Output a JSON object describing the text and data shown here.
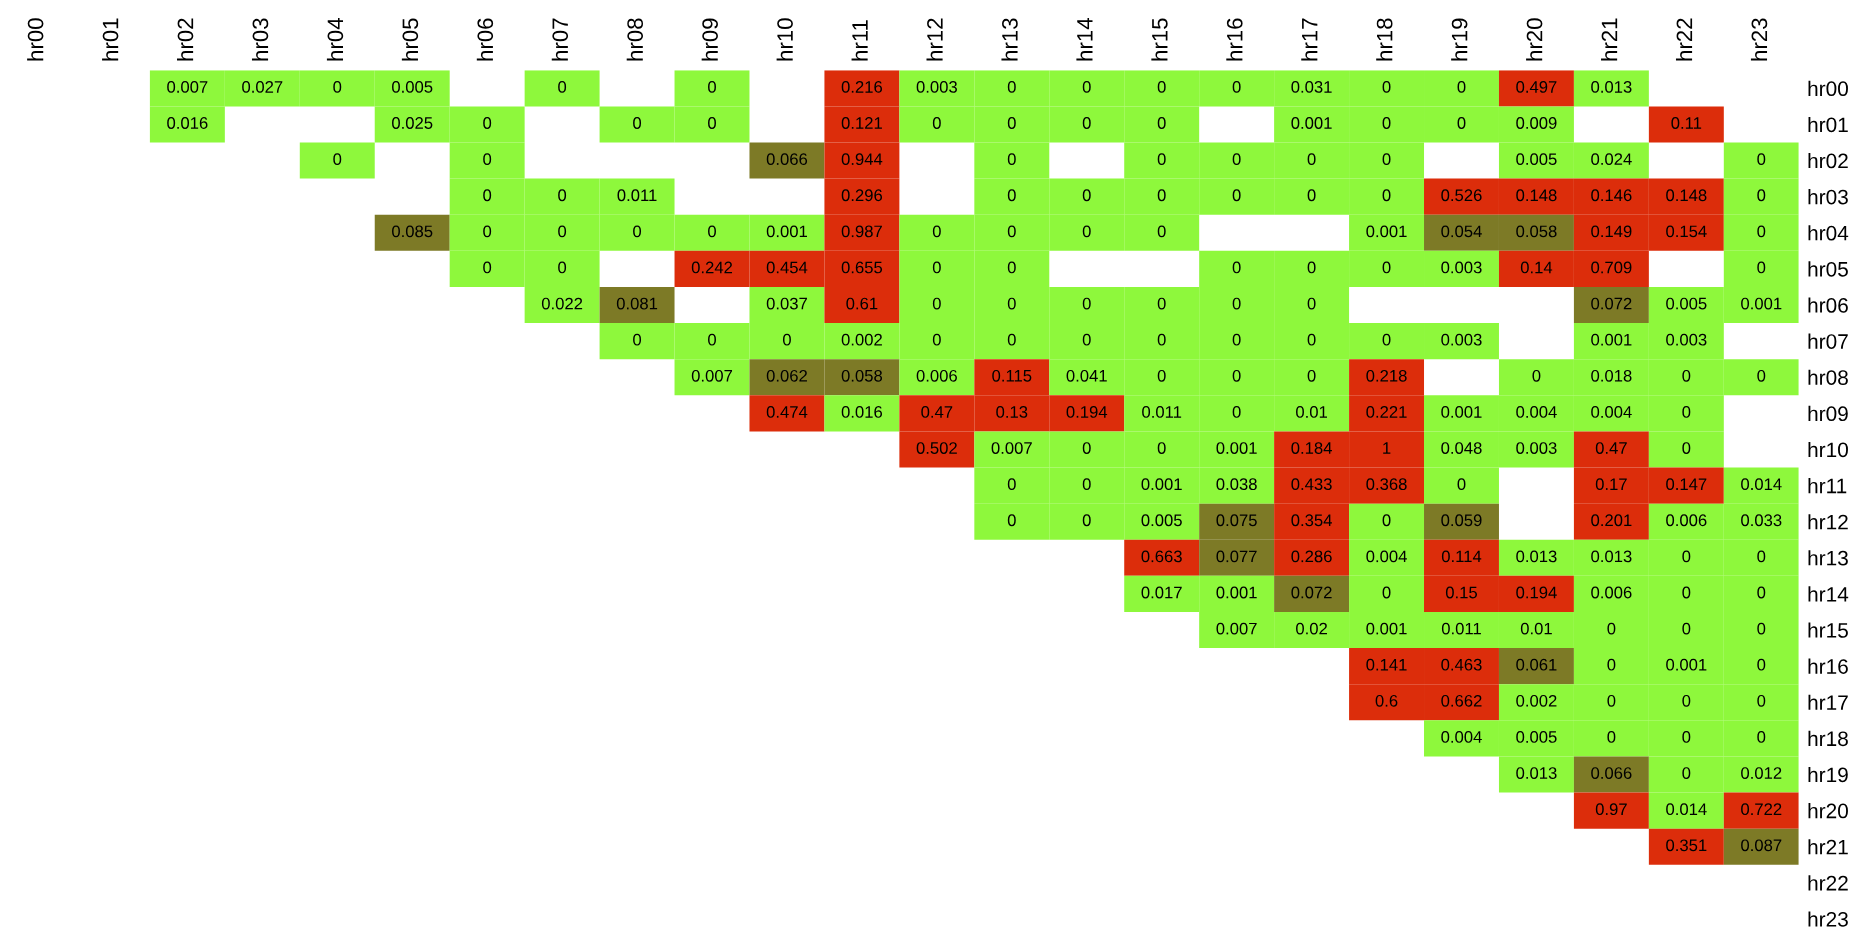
{
  "chart_data": {
    "type": "heatmap",
    "categories": [
      "hr00",
      "hr01",
      "hr02",
      "hr03",
      "hr04",
      "hr05",
      "hr06",
      "hr07",
      "hr08",
      "hr09",
      "hr10",
      "hr11",
      "hr12",
      "hr13",
      "hr14",
      "hr15",
      "hr16",
      "hr17",
      "hr18",
      "hr19",
      "hr20",
      "hr21",
      "hr22",
      "hr23"
    ],
    "y_categories": [
      "hr00",
      "hr01",
      "hr02",
      "hr03",
      "hr04",
      "hr05",
      "hr06",
      "hr07",
      "hr08",
      "hr09",
      "hr10",
      "hr11",
      "hr12",
      "hr13",
      "hr14",
      "hr15",
      "hr16",
      "hr17",
      "hr18",
      "hr19",
      "hr20",
      "hr21",
      "hr22",
      "hr23"
    ],
    "colors": [
      [
        null,
        null,
        "#8ef83c",
        "#8ef83c",
        "#8ef83c",
        "#8ef83c",
        null,
        "#8ef83c",
        null,
        "#8ef83c",
        null,
        "#dc2d0b",
        "#8ef83c",
        "#8ef83c",
        "#8ef83c",
        "#8ef83c",
        "#8ef83c",
        "#8ef83c",
        "#8ef83c",
        "#8ef83c",
        "#dc2d0b",
        "#8ef83c",
        null,
        null
      ],
      [
        null,
        null,
        "#8ef83c",
        null,
        null,
        "#8ef83c",
        "#8ef83c",
        null,
        "#8ef83c",
        "#8ef83c",
        null,
        "#dc2d0b",
        "#8ef83c",
        "#8ef83c",
        "#8ef83c",
        "#8ef83c",
        null,
        "#8ef83c",
        "#8ef83c",
        "#8ef83c",
        "#8ef83c",
        null,
        "#dc2d0b",
        null
      ],
      [
        null,
        null,
        null,
        null,
        "#8ef83c",
        null,
        "#8ef83c",
        null,
        null,
        null,
        "#7d7a26",
        "#dc2d0b",
        null,
        "#8ef83c",
        null,
        "#8ef83c",
        "#8ef83c",
        "#8ef83c",
        "#8ef83c",
        null,
        "#8ef83c",
        "#8ef83c",
        null,
        "#8ef83c"
      ],
      [
        null,
        null,
        null,
        null,
        null,
        null,
        "#8ef83c",
        "#8ef83c",
        "#8ef83c",
        null,
        null,
        "#dc2d0b",
        null,
        "#8ef83c",
        "#8ef83c",
        "#8ef83c",
        "#8ef83c",
        "#8ef83c",
        "#8ef83c",
        "#dc2d0b",
        "#dc2d0b",
        "#dc2d0b",
        "#dc2d0b",
        "#8ef83c"
      ],
      [
        null,
        null,
        null,
        null,
        null,
        "#7d7a26",
        "#8ef83c",
        "#8ef83c",
        "#8ef83c",
        "#8ef83c",
        "#8ef83c",
        "#dc2d0b",
        "#8ef83c",
        "#8ef83c",
        "#8ef83c",
        "#8ef83c",
        null,
        null,
        "#8ef83c",
        "#7d7a26",
        "#7d7a26",
        "#dc2d0b",
        "#dc2d0b",
        "#8ef83c"
      ],
      [
        null,
        null,
        null,
        null,
        null,
        null,
        "#8ef83c",
        "#8ef83c",
        null,
        "#dc2d0b",
        "#dc2d0b",
        "#dc2d0b",
        "#8ef83c",
        "#8ef83c",
        null,
        null,
        "#8ef83c",
        "#8ef83c",
        "#8ef83c",
        "#8ef83c",
        "#dc2d0b",
        "#dc2d0b",
        null,
        "#8ef83c"
      ],
      [
        null,
        null,
        null,
        null,
        null,
        null,
        null,
        "#8ef83c",
        "#7d7a26",
        null,
        "#8ef83c",
        "#dc2d0b",
        "#8ef83c",
        "#8ef83c",
        "#8ef83c",
        "#8ef83c",
        "#8ef83c",
        "#8ef83c",
        null,
        null,
        null,
        "#7d7a26",
        "#8ef83c",
        "#8ef83c"
      ],
      [
        null,
        null,
        null,
        null,
        null,
        null,
        null,
        null,
        "#8ef83c",
        "#8ef83c",
        "#8ef83c",
        "#8ef83c",
        "#8ef83c",
        "#8ef83c",
        "#8ef83c",
        "#8ef83c",
        "#8ef83c",
        "#8ef83c",
        "#8ef83c",
        "#8ef83c",
        null,
        "#8ef83c",
        "#8ef83c",
        null
      ],
      [
        null,
        null,
        null,
        null,
        null,
        null,
        null,
        null,
        null,
        "#8ef83c",
        "#7d7a26",
        "#7d7a26",
        "#8ef83c",
        "#dc2d0b",
        "#8ef83c",
        "#8ef83c",
        "#8ef83c",
        "#8ef83c",
        "#dc2d0b",
        null,
        "#8ef83c",
        "#8ef83c",
        "#8ef83c",
        "#8ef83c"
      ],
      [
        null,
        null,
        null,
        null,
        null,
        null,
        null,
        null,
        null,
        null,
        "#dc2d0b",
        "#8ef83c",
        "#dc2d0b",
        "#dc2d0b",
        "#dc2d0b",
        "#8ef83c",
        "#8ef83c",
        "#8ef83c",
        "#dc2d0b",
        "#8ef83c",
        "#8ef83c",
        "#8ef83c",
        "#8ef83c",
        null
      ],
      [
        null,
        null,
        null,
        null,
        null,
        null,
        null,
        null,
        null,
        null,
        null,
        null,
        "#dc2d0b",
        "#8ef83c",
        "#8ef83c",
        "#8ef83c",
        "#8ef83c",
        "#dc2d0b",
        "#dc2d0b",
        "#8ef83c",
        "#8ef83c",
        "#dc2d0b",
        "#8ef83c",
        null
      ],
      [
        null,
        null,
        null,
        null,
        null,
        null,
        null,
        null,
        null,
        null,
        null,
        null,
        null,
        "#8ef83c",
        "#8ef83c",
        "#8ef83c",
        "#8ef83c",
        "#dc2d0b",
        "#dc2d0b",
        "#8ef83c",
        null,
        "#dc2d0b",
        "#dc2d0b",
        "#8ef83c"
      ],
      [
        null,
        null,
        null,
        null,
        null,
        null,
        null,
        null,
        null,
        null,
        null,
        null,
        null,
        "#8ef83c",
        "#8ef83c",
        "#8ef83c",
        "#7d7a26",
        "#dc2d0b",
        "#8ef83c",
        "#7d7a26",
        null,
        "#dc2d0b",
        "#8ef83c",
        "#8ef83c"
      ],
      [
        null,
        null,
        null,
        null,
        null,
        null,
        null,
        null,
        null,
        null,
        null,
        null,
        null,
        null,
        null,
        "#dc2d0b",
        "#7d7a26",
        "#dc2d0b",
        "#8ef83c",
        "#dc2d0b",
        "#8ef83c",
        "#8ef83c",
        "#8ef83c",
        "#8ef83c"
      ],
      [
        null,
        null,
        null,
        null,
        null,
        null,
        null,
        null,
        null,
        null,
        null,
        null,
        null,
        null,
        null,
        "#8ef83c",
        "#8ef83c",
        "#7d7a26",
        "#8ef83c",
        "#dc2d0b",
        "#dc2d0b",
        "#8ef83c",
        "#8ef83c",
        "#8ef83c"
      ],
      [
        null,
        null,
        null,
        null,
        null,
        null,
        null,
        null,
        null,
        null,
        null,
        null,
        null,
        null,
        null,
        null,
        "#8ef83c",
        "#8ef83c",
        "#8ef83c",
        "#8ef83c",
        "#8ef83c",
        "#8ef83c",
        "#8ef83c",
        "#8ef83c"
      ],
      [
        null,
        null,
        null,
        null,
        null,
        null,
        null,
        null,
        null,
        null,
        null,
        null,
        null,
        null,
        null,
        null,
        null,
        null,
        "#dc2d0b",
        "#dc2d0b",
        "#7d7a26",
        "#8ef83c",
        "#8ef83c",
        "#8ef83c"
      ],
      [
        null,
        null,
        null,
        null,
        null,
        null,
        null,
        null,
        null,
        null,
        null,
        null,
        null,
        null,
        null,
        null,
        null,
        null,
        "#dc2d0b",
        "#dc2d0b",
        "#8ef83c",
        "#8ef83c",
        "#8ef83c",
        "#8ef83c"
      ],
      [
        null,
        null,
        null,
        null,
        null,
        null,
        null,
        null,
        null,
        null,
        null,
        null,
        null,
        null,
        null,
        null,
        null,
        null,
        null,
        "#8ef83c",
        "#8ef83c",
        "#8ef83c",
        "#8ef83c",
        "#8ef83c"
      ],
      [
        null,
        null,
        null,
        null,
        null,
        null,
        null,
        null,
        null,
        null,
        null,
        null,
        null,
        null,
        null,
        null,
        null,
        null,
        null,
        null,
        "#8ef83c",
        "#7d7a26",
        "#8ef83c",
        "#8ef83c"
      ],
      [
        null,
        null,
        null,
        null,
        null,
        null,
        null,
        null,
        null,
        null,
        null,
        null,
        null,
        null,
        null,
        null,
        null,
        null,
        null,
        null,
        null,
        "#dc2d0b",
        "#8ef83c",
        "#dc2d0b"
      ],
      [
        null,
        null,
        null,
        null,
        null,
        null,
        null,
        null,
        null,
        null,
        null,
        null,
        null,
        null,
        null,
        null,
        null,
        null,
        null,
        null,
        null,
        null,
        "#dc2d0b",
        "#7d7a26"
      ],
      [
        null,
        null,
        null,
        null,
        null,
        null,
        null,
        null,
        null,
        null,
        null,
        null,
        null,
        null,
        null,
        null,
        null,
        null,
        null,
        null,
        null,
        null,
        null,
        null
      ],
      [
        null,
        null,
        null,
        null,
        null,
        null,
        null,
        null,
        null,
        null,
        null,
        null,
        null,
        null,
        null,
        null,
        null,
        null,
        null,
        null,
        null,
        null,
        null,
        null
      ]
    ],
    "data_labels": true,
    "grid": false,
    "cells": [
      [
        null,
        null,
        0.007,
        0.027,
        0,
        0.005,
        null,
        0,
        null,
        0,
        null,
        0.216,
        0.003,
        0,
        0,
        0,
        0,
        0.031,
        0,
        0,
        0.497,
        0.013,
        null,
        null
      ],
      [
        null,
        null,
        0.016,
        null,
        null,
        0.025,
        0,
        null,
        0,
        0,
        null,
        0.121,
        0,
        0,
        0,
        0,
        null,
        0.001,
        0,
        0,
        0.009,
        null,
        0.11,
        null
      ],
      [
        null,
        null,
        null,
        null,
        0,
        null,
        0,
        null,
        null,
        null,
        0.066,
        0.944,
        null,
        0,
        null,
        0,
        0,
        0,
        0,
        null,
        0.005,
        0.024,
        null,
        0
      ],
      [
        null,
        null,
        null,
        null,
        null,
        null,
        0,
        0,
        0.011,
        null,
        null,
        0.296,
        null,
        0,
        0,
        0,
        0,
        0,
        0,
        0.526,
        0.148,
        0.146,
        0.148,
        0
      ],
      [
        null,
        null,
        null,
        null,
        null,
        0.085,
        0,
        0,
        0,
        0,
        0.001,
        0.987,
        0,
        0,
        0,
        0,
        null,
        null,
        0.001,
        0.054,
        0.058,
        0.149,
        0.154,
        0
      ],
      [
        null,
        null,
        null,
        null,
        null,
        null,
        0,
        0,
        null,
        0.242,
        0.454,
        0.655,
        0,
        0,
        null,
        null,
        0,
        0,
        0,
        0.003,
        0.14,
        0.709,
        null,
        0
      ],
      [
        null,
        null,
        null,
        null,
        null,
        null,
        null,
        0.022,
        0.081,
        null,
        0.037,
        0.61,
        0,
        0,
        0,
        0,
        0,
        0,
        null,
        null,
        null,
        0.072,
        0.005,
        0.001
      ],
      [
        null,
        null,
        null,
        null,
        null,
        null,
        null,
        null,
        0,
        0,
        0,
        0.002,
        0,
        0,
        0,
        0,
        0,
        0,
        0,
        0.003,
        null,
        0.001,
        0.003,
        null
      ],
      [
        null,
        null,
        null,
        null,
        null,
        null,
        null,
        null,
        null,
        0.007,
        0.062,
        0.058,
        0.006,
        0.115,
        0.041,
        0,
        0,
        0,
        0.218,
        null,
        0,
        0.018,
        0,
        0
      ],
      [
        null,
        null,
        null,
        null,
        null,
        null,
        null,
        null,
        null,
        null,
        0.474,
        0.016,
        0.47,
        0.13,
        0.194,
        0.011,
        0,
        0.01,
        0.221,
        0.001,
        0.004,
        0.004,
        0,
        null
      ],
      [
        null,
        null,
        null,
        null,
        null,
        null,
        null,
        null,
        null,
        null,
        null,
        null,
        0.502,
        0.007,
        0,
        0,
        0.001,
        0.184,
        1,
        0.048,
        0.003,
        0.47,
        0,
        null
      ],
      [
        null,
        null,
        null,
        null,
        null,
        null,
        null,
        null,
        null,
        null,
        null,
        null,
        null,
        0,
        0,
        0.001,
        0.038,
        0.433,
        0.368,
        0,
        null,
        0.17,
        0.147,
        0.014
      ],
      [
        null,
        null,
        null,
        null,
        null,
        null,
        null,
        null,
        null,
        null,
        null,
        null,
        null,
        0,
        0,
        0.005,
        0.075,
        0.354,
        0,
        0.059,
        null,
        0.201,
        0.006,
        0.033
      ],
      [
        null,
        null,
        null,
        null,
        null,
        null,
        null,
        null,
        null,
        null,
        null,
        null,
        null,
        null,
        null,
        0.663,
        0.077,
        0.286,
        0.004,
        0.114,
        0.013,
        0.013,
        0,
        0
      ],
      [
        null,
        null,
        null,
        null,
        null,
        null,
        null,
        null,
        null,
        null,
        null,
        null,
        null,
        null,
        null,
        0.017,
        0.001,
        0.072,
        0,
        0.15,
        0.194,
        0.006,
        0,
        0
      ],
      [
        null,
        null,
        null,
        null,
        null,
        null,
        null,
        null,
        null,
        null,
        null,
        null,
        null,
        null,
        null,
        null,
        0.007,
        0.02,
        0.001,
        0.011,
        0.01,
        0,
        0,
        0
      ],
      [
        null,
        null,
        null,
        null,
        null,
        null,
        null,
        null,
        null,
        null,
        null,
        null,
        null,
        null,
        null,
        null,
        null,
        null,
        0.141,
        0.463,
        0.061,
        0,
        0.001,
        0
      ],
      [
        null,
        null,
        null,
        null,
        null,
        null,
        null,
        null,
        null,
        null,
        null,
        null,
        null,
        null,
        null,
        null,
        null,
        null,
        0.6,
        0.662,
        0.002,
        0,
        0,
        0
      ],
      [
        null,
        null,
        null,
        null,
        null,
        null,
        null,
        null,
        null,
        null,
        null,
        null,
        null,
        null,
        null,
        null,
        null,
        null,
        null,
        0.004,
        0.005,
        0,
        0,
        0
      ],
      [
        null,
        null,
        null,
        null,
        null,
        null,
        null,
        null,
        null,
        null,
        null,
        null,
        null,
        null,
        null,
        null,
        null,
        null,
        null,
        null,
        0.013,
        0.066,
        0,
        0.012
      ],
      [
        null,
        null,
        null,
        null,
        null,
        null,
        null,
        null,
        null,
        null,
        null,
        null,
        null,
        null,
        null,
        null,
        null,
        null,
        null,
        null,
        null,
        0.97,
        0.014,
        0.722
      ],
      [
        null,
        null,
        null,
        null,
        null,
        null,
        null,
        null,
        null,
        null,
        null,
        null,
        null,
        null,
        null,
        null,
        null,
        null,
        null,
        null,
        null,
        null,
        0.351,
        0.087
      ],
      [
        null,
        null,
        null,
        null,
        null,
        null,
        null,
        null,
        null,
        null,
        null,
        null,
        null,
        null,
        null,
        null,
        null,
        null,
        null,
        null,
        null,
        null,
        null,
        null
      ],
      [
        null,
        null,
        null,
        null,
        null,
        null,
        null,
        null,
        null,
        null,
        null,
        null,
        null,
        null,
        null,
        null,
        null,
        null,
        null,
        null,
        null,
        null,
        null,
        null
      ]
    ]
  }
}
